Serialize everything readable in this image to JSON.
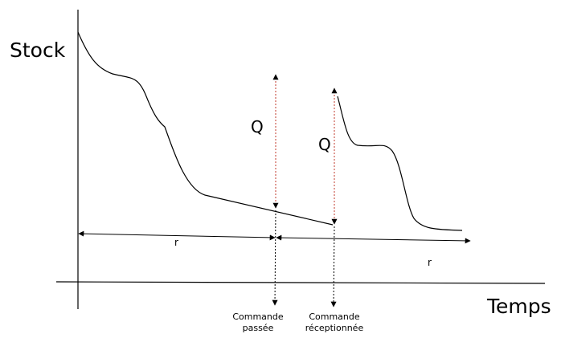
{
  "axes": {
    "y_label": "Stock",
    "x_label": "Temps"
  },
  "quantities": {
    "q_first": "Q",
    "q_second": "Q"
  },
  "delays": {
    "r_first": "r",
    "r_second": "r"
  },
  "events": {
    "order_placed": {
      "line1": "Commande",
      "line2": "passée"
    },
    "order_received": {
      "line1": "Commande",
      "line2": "réceptionnée"
    }
  },
  "colors": {
    "ink": "#000000",
    "q_arrow_dash": "#c0392b"
  }
}
